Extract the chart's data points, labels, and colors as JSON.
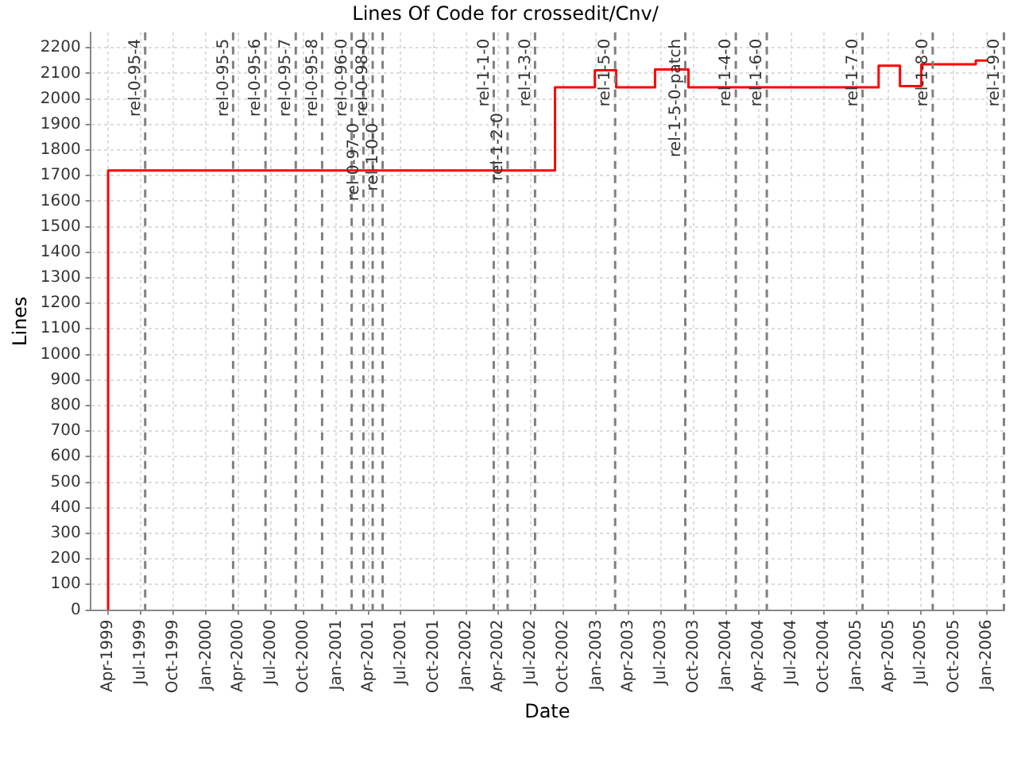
{
  "chart_data": {
    "type": "step",
    "title": "Lines Of Code for crossedit/Cnv/",
    "xlabel": "Date",
    "ylabel": "Lines",
    "x": [
      "1999-04-01",
      "1999-04-01",
      "2002-09-07",
      "2002-12-28",
      "2003-02-26",
      "2003-06-15",
      "2003-09-17",
      "2005-03-04",
      "2005-05-03",
      "2005-07-02",
      "2005-12-02",
      "2006-01-05"
    ],
    "series": [
      {
        "color": "#ff0000",
        "values": [
          0,
          1720,
          2045,
          2112,
          2045,
          2115,
          2045,
          2130,
          2050,
          2135,
          2150,
          2150
        ]
      }
    ],
    "xlim": [
      "1999-02-10",
      "2006-02-20"
    ],
    "xticks": [
      {
        "value": "1999-04",
        "label": "Apr-1999"
      },
      {
        "value": "1999-07",
        "label": "Jul-1999"
      },
      {
        "value": "1999-10",
        "label": "Oct-1999"
      },
      {
        "value": "2000-01",
        "label": "Jan-2000"
      },
      {
        "value": "2000-04",
        "label": "Apr-2000"
      },
      {
        "value": "2000-07",
        "label": "Jul-2000"
      },
      {
        "value": "2000-10",
        "label": "Oct-2000"
      },
      {
        "value": "2001-01",
        "label": "Jan-2001"
      },
      {
        "value": "2001-04",
        "label": "Apr-2001"
      },
      {
        "value": "2001-07",
        "label": "Jul-2001"
      },
      {
        "value": "2001-10",
        "label": "Oct-2001"
      },
      {
        "value": "2002-01",
        "label": "Jan-2002"
      },
      {
        "value": "2002-04",
        "label": "Apr-2002"
      },
      {
        "value": "2002-07",
        "label": "Jul-2002"
      },
      {
        "value": "2002-10",
        "label": "Oct-2002"
      },
      {
        "value": "2003-01",
        "label": "Jan-2003"
      },
      {
        "value": "2003-04",
        "label": "Apr-2003"
      },
      {
        "value": "2003-07",
        "label": "Jul-2003"
      },
      {
        "value": "2003-10",
        "label": "Oct-2003"
      },
      {
        "value": "2004-01",
        "label": "Jan-2004"
      },
      {
        "value": "2004-04",
        "label": "Apr-2004"
      },
      {
        "value": "2004-07",
        "label": "Jul-2004"
      },
      {
        "value": "2004-10",
        "label": "Oct-2004"
      },
      {
        "value": "2005-01",
        "label": "Jan-2005"
      },
      {
        "value": "2005-04",
        "label": "Apr-2005"
      },
      {
        "value": "2005-07",
        "label": "Jul-2005"
      },
      {
        "value": "2005-10",
        "label": "Oct-2005"
      },
      {
        "value": "2006-01",
        "label": "Jan-2006"
      }
    ],
    "ylim": [
      0,
      2260
    ],
    "yticks": [
      0,
      100,
      200,
      300,
      400,
      500,
      600,
      700,
      800,
      900,
      1000,
      1100,
      1200,
      1300,
      1400,
      1500,
      1600,
      1700,
      1800,
      1900,
      2000,
      2100,
      2200
    ],
    "grid": true,
    "legend": false,
    "line_style": "solid",
    "marker": "none",
    "ref_lines": [
      {
        "axis": "x",
        "value": "1999-07-14",
        "label": "rel-0-95-4",
        "color": "#808080",
        "line_style": "dashed"
      },
      {
        "axis": "x",
        "value": "2000-03-17",
        "label": "rel-0-95-5",
        "color": "#808080",
        "line_style": "dashed"
      },
      {
        "axis": "x",
        "value": "2000-06-16",
        "label": "rel-0-95-6",
        "color": "#808080",
        "line_style": "dashed"
      },
      {
        "axis": "x",
        "value": "2000-09-09",
        "label": "rel-0-95-7",
        "color": "#808080",
        "line_style": "dashed"
      },
      {
        "axis": "x",
        "value": "2000-11-22",
        "label": "rel-0-95-8",
        "color": "#808080",
        "line_style": "dashed"
      },
      {
        "axis": "x",
        "value": "2001-02-13",
        "label": "rel-0-96-0",
        "color": "#808080",
        "line_style": "dashed"
      },
      {
        "axis": "x",
        "value": "2001-03-18",
        "label": "rel-0-97-0",
        "color": "#808080",
        "line_style": "dashed"
      },
      {
        "axis": "x",
        "value": "2001-04-13",
        "label": "rel-0-98-0",
        "color": "#808080",
        "line_style": "dashed"
      },
      {
        "axis": "x",
        "value": "2001-05-11",
        "label": "rel-1-0-0",
        "color": "#808080",
        "line_style": "dashed"
      },
      {
        "axis": "x",
        "value": "2002-03-19",
        "label": "rel-1-1-0",
        "color": "#808080",
        "line_style": "dashed"
      },
      {
        "axis": "x",
        "value": "2002-04-27",
        "label": "rel-1-2-0",
        "color": "#808080",
        "line_style": "dashed"
      },
      {
        "axis": "x",
        "value": "2002-07-13",
        "label": "rel-1-3-0",
        "color": "#808080",
        "line_style": "dashed"
      },
      {
        "axis": "x",
        "value": "2003-02-23",
        "label": "rel-1-5-0",
        "color": "#808080",
        "line_style": "dashed"
      },
      {
        "axis": "x",
        "value": "2003-09-08",
        "label": "rel-1-5-0-patch",
        "color": "#808080",
        "line_style": "dashed"
      },
      {
        "axis": "x",
        "value": "2004-01-28",
        "label": "rel-1-4-0",
        "color": "#808080",
        "line_style": "dashed"
      },
      {
        "axis": "x",
        "value": "2004-04-24",
        "label": "rel-1-6-0",
        "color": "#808080",
        "line_style": "dashed"
      },
      {
        "axis": "x",
        "value": "2005-01-18",
        "label": "rel-1-7-0",
        "color": "#808080",
        "line_style": "dashed"
      },
      {
        "axis": "x",
        "value": "2005-08-03",
        "label": "rel-1-8-0",
        "color": "#808080",
        "line_style": "dashed"
      },
      {
        "axis": "x",
        "value": "2006-02-19",
        "label": "rel-1-9-0",
        "color": "#808080",
        "line_style": "dashed"
      }
    ]
  }
}
